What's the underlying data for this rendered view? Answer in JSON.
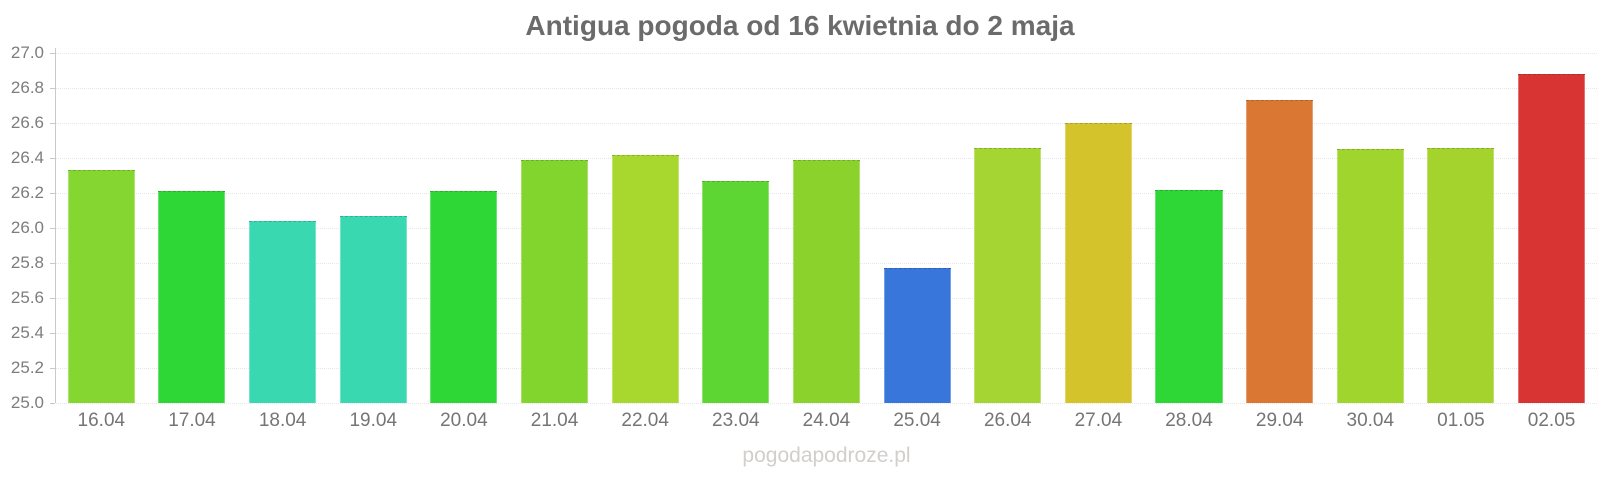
{
  "title": "Antigua pogoda od 16 kwietnia do 2 maja",
  "watermark": "pogodapodroze.pl",
  "colors": {
    "background": "#ffffff",
    "title_text": "#6b6b6b",
    "axis_line": "#c9c9c9",
    "gridline": "#e7e7e7",
    "tick_label": "#7d7d7d",
    "x_label": "#757575",
    "watermark_text": "#d1cecc"
  },
  "chart_data": {
    "type": "bar",
    "title": "Antigua pogoda od 16 kwietnia do 2 maja",
    "xlabel": "",
    "ylabel": "",
    "categories": [
      "16.04",
      "17.04",
      "18.04",
      "19.04",
      "20.04",
      "21.04",
      "22.04",
      "23.04",
      "24.04",
      "25.04",
      "26.04",
      "27.04",
      "28.04",
      "29.04",
      "30.04",
      "01.05",
      "02.05"
    ],
    "values": [
      26.33,
      26.21,
      26.04,
      26.07,
      26.21,
      26.39,
      26.42,
      26.27,
      26.39,
      25.77,
      26.46,
      26.6,
      26.22,
      26.73,
      26.45,
      26.46,
      26.88
    ],
    "bar_colors": [
      "#85d631",
      "#2ed636",
      "#3ad8b1",
      "#3ad8b1",
      "#2ed636",
      "#82d52c",
      "#a8d72e",
      "#5dd633",
      "#8bd32c",
      "#3876db",
      "#a4d532",
      "#d4c32b",
      "#2ed636",
      "#d97733",
      "#a0d52d",
      "#a4d32e",
      "#d93434"
    ],
    "ylim": [
      25.0,
      27.0
    ],
    "ytick_labels": [
      "27.0",
      "26.8",
      "26.6",
      "26.4",
      "26.2",
      "26.0",
      "25.8",
      "25.6",
      "25.4",
      "25.2",
      "25.0"
    ],
    "grid": "horizontal dotted, legend off",
    "units": "°C (temperature by day)"
  }
}
